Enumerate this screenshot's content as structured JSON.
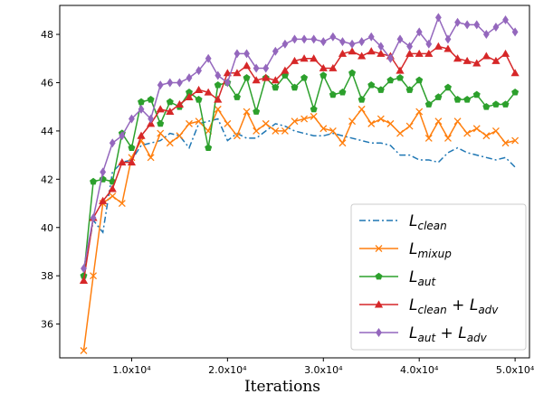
{
  "chart_data": {
    "type": "line",
    "xlabel": "Iterations",
    "ylabel": "",
    "xlim": [
      2500,
      51500
    ],
    "ylim": [
      34.6,
      49.2
    ],
    "xticks": [
      10000,
      20000,
      30000,
      40000,
      50000
    ],
    "xtick_labels": [
      "1.0x10⁴",
      "2.0x10⁴",
      "3.0x10⁴",
      "4.0x10⁴",
      "5.0x10⁴"
    ],
    "yticks": [
      36,
      38,
      40,
      42,
      44,
      46,
      48
    ],
    "ytick_labels": [
      "36",
      "38",
      "40",
      "42",
      "44",
      "46",
      "48"
    ],
    "grid": false,
    "legend_position": "bottom-right",
    "x": [
      5000,
      6000,
      7000,
      8000,
      9000,
      10000,
      11000,
      12000,
      13000,
      14000,
      15000,
      16000,
      17000,
      18000,
      19000,
      20000,
      21000,
      22000,
      23000,
      24000,
      25000,
      26000,
      27000,
      28000,
      29000,
      30000,
      31000,
      32000,
      33000,
      34000,
      35000,
      36000,
      37000,
      38000,
      39000,
      40000,
      41000,
      42000,
      43000,
      44000,
      45000,
      46000,
      47000,
      48000,
      49000,
      50000
    ],
    "series": [
      {
        "name": "L_clean",
        "legend_main": "L",
        "legend_sub": "clean",
        "color": "#1f77b4",
        "marker": "none",
        "dash": "dashdot",
        "values": [
          38.0,
          40.3,
          39.8,
          42.3,
          42.7,
          42.8,
          43.4,
          43.5,
          43.6,
          43.9,
          43.8,
          43.3,
          44.3,
          44.4,
          44.5,
          43.6,
          43.9,
          43.7,
          43.7,
          44.0,
          44.3,
          44.2,
          44.0,
          43.9,
          43.8,
          43.8,
          43.9,
          43.8,
          43.7,
          43.6,
          43.5,
          43.5,
          43.4,
          43.0,
          43.0,
          42.8,
          42.8,
          42.7,
          43.1,
          43.3,
          43.1,
          43.0,
          42.9,
          42.8,
          42.9,
          42.5
        ]
      },
      {
        "name": "L_mixup",
        "legend_main": "L",
        "legend_sub": "mixup",
        "color": "#ff7f0e",
        "marker": "x",
        "dash": "solid",
        "values": [
          34.9,
          38.0,
          41.0,
          41.3,
          41.0,
          42.9,
          43.6,
          42.9,
          43.9,
          43.5,
          43.8,
          44.3,
          44.4,
          44.0,
          44.9,
          44.3,
          43.8,
          44.8,
          44.0,
          44.3,
          44.0,
          44.0,
          44.4,
          44.5,
          44.6,
          44.1,
          44.0,
          43.5,
          44.4,
          44.9,
          44.3,
          44.5,
          44.3,
          43.9,
          44.2,
          44.8,
          43.7,
          44.4,
          43.7,
          44.4,
          43.9,
          44.1,
          43.8,
          44.0,
          43.5,
          43.6
        ]
      },
      {
        "name": "L_aut",
        "legend_main": "L",
        "legend_sub": "aut",
        "color": "#2ca02c",
        "marker": "pentagon",
        "dash": "solid",
        "values": [
          38.0,
          41.9,
          42.0,
          41.9,
          43.9,
          43.3,
          45.2,
          45.3,
          44.3,
          45.2,
          45.0,
          45.6,
          45.3,
          43.3,
          45.9,
          46.0,
          45.4,
          46.2,
          44.8,
          46.2,
          45.8,
          46.3,
          45.8,
          46.2,
          44.9,
          46.3,
          45.5,
          45.6,
          46.4,
          45.3,
          45.9,
          45.7,
          46.1,
          46.2,
          45.7,
          46.1,
          45.1,
          45.4,
          45.8,
          45.3,
          45.3,
          45.5,
          45.0,
          45.1,
          45.1,
          45.6
        ]
      },
      {
        "name": "L_clean + L_adv",
        "legend_main": "L",
        "legend_sub": "clean",
        "legend_main2": "L",
        "legend_sub2": "adv",
        "color": "#d62728",
        "marker": "triangle",
        "dash": "solid",
        "values": [
          37.8,
          40.4,
          41.1,
          41.6,
          42.7,
          42.7,
          43.8,
          44.3,
          44.9,
          44.8,
          45.1,
          45.4,
          45.7,
          45.6,
          45.3,
          46.4,
          46.4,
          46.7,
          46.1,
          46.2,
          46.1,
          46.5,
          46.9,
          47.0,
          47.0,
          46.6,
          46.6,
          47.2,
          47.3,
          47.1,
          47.3,
          47.2,
          47.1,
          46.5,
          47.2,
          47.2,
          47.2,
          47.5,
          47.4,
          47.0,
          46.9,
          46.8,
          47.1,
          46.9,
          47.2,
          46.4
        ]
      },
      {
        "name": "L_aut + L_adv",
        "legend_main": "L",
        "legend_sub": "aut",
        "legend_main2": "L",
        "legend_sub2": "adv",
        "color": "#9467bd",
        "marker": "diamond",
        "dash": "solid",
        "values": [
          38.3,
          40.4,
          42.3,
          43.5,
          43.8,
          44.5,
          44.9,
          44.5,
          45.9,
          46.0,
          46.0,
          46.2,
          46.5,
          47.0,
          46.3,
          46.0,
          47.2,
          47.2,
          46.6,
          46.6,
          47.3,
          47.6,
          47.8,
          47.8,
          47.8,
          47.7,
          47.9,
          47.7,
          47.6,
          47.7,
          47.9,
          47.5,
          47.0,
          47.8,
          47.5,
          48.1,
          47.6,
          48.7,
          47.8,
          48.5,
          48.4,
          48.4,
          48.0,
          48.3,
          48.6,
          48.1
        ]
      }
    ]
  }
}
